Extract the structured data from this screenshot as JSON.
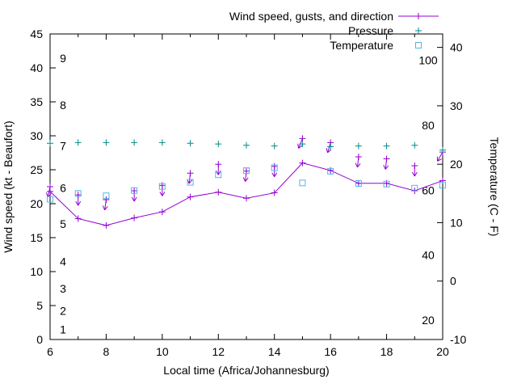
{
  "chart_data": {
    "type": "line",
    "title": "",
    "xlabel": "Local time (Africa/Johannesburg)",
    "ylabel_left": "Wind speed (kt - Beaufort)",
    "ylabel_right": "Temperature (C - F)",
    "grid": false,
    "legend_position": "top-right-inside",
    "x_range": [
      6,
      20
    ],
    "y_left_range": [
      0,
      45
    ],
    "y_right_range": [
      -10,
      42.3
    ],
    "x_ticks": [
      6,
      8,
      10,
      12,
      14,
      16,
      18,
      20
    ],
    "x_minor_ticks": [
      7,
      9,
      11,
      13,
      15,
      17,
      19
    ],
    "y_left_ticks": [
      0,
      5,
      10,
      15,
      20,
      25,
      30,
      35,
      40,
      45
    ],
    "y_right_ticks": [
      -10,
      0,
      10,
      20,
      30,
      40
    ],
    "beaufort_labels": [
      {
        "label": "1",
        "kt": 1.5
      },
      {
        "label": "2",
        "kt": 4.2
      },
      {
        "label": "3",
        "kt": 7.5
      },
      {
        "label": "4",
        "kt": 11.5
      },
      {
        "label": "5",
        "kt": 17.0
      },
      {
        "label": "6",
        "kt": 22.3
      },
      {
        "label": "7",
        "kt": 28.5
      },
      {
        "label": "8",
        "kt": 34.5
      },
      {
        "label": "9",
        "kt": 41.4
      }
    ],
    "fahrenheit_labels": [
      {
        "label": "20",
        "f": 20
      },
      {
        "label": "40",
        "f": 40
      },
      {
        "label": "60",
        "f": 60
      },
      {
        "label": "80",
        "f": 80
      },
      {
        "label": "100",
        "f": 100
      }
    ],
    "x": [
      6,
      7,
      8,
      9,
      10,
      11,
      12,
      13,
      14,
      15,
      16,
      17,
      18,
      19,
      20
    ],
    "series": [
      {
        "name": "Wind speed, gusts, and direction",
        "kind": "wind",
        "color": "#9400d3",
        "axis": "left",
        "values": [
          21.8,
          17.8,
          16.8,
          17.9,
          18.8,
          21.0,
          21.7,
          20.8,
          21.6,
          26.0,
          24.9,
          23.0,
          23.0,
          21.9,
          23.4
        ],
        "gusts": [
          22.5,
          21.3,
          20.6,
          21.9,
          22.7,
          24.5,
          25.8,
          24.8,
          25.5,
          29.6,
          29.0,
          26.9,
          26.6,
          25.6,
          27.6
        ],
        "gust_arrow_tilts_deg": [
          12,
          0,
          8,
          0,
          0,
          6,
          0,
          6,
          0,
          22,
          16,
          6,
          6,
          0,
          30
        ]
      },
      {
        "name": "Pressure",
        "kind": "points-plus",
        "color": "#008b8b",
        "axis": "left",
        "values": [
          28.9,
          29.0,
          29.0,
          29.0,
          29.0,
          28.9,
          28.8,
          28.6,
          28.5,
          28.8,
          28.4,
          28.5,
          28.5,
          28.6,
          27.9
        ]
      },
      {
        "name": "Temperature",
        "kind": "points-square",
        "color": "#56b4e9",
        "axis": "right",
        "values": [
          14.0,
          15.0,
          14.6,
          15.5,
          16.2,
          16.9,
          18.2,
          18.9,
          19.4,
          16.8,
          18.8,
          16.7,
          16.6,
          15.9,
          16.4
        ]
      }
    ]
  }
}
